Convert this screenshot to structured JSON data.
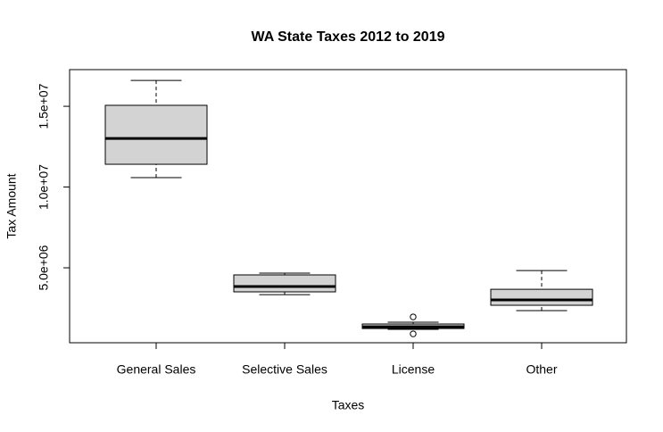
{
  "chart_data": {
    "type": "boxplot",
    "title": "WA State Taxes 2012 to 2019",
    "x_label": "Taxes",
    "y_label": "Tax Amount",
    "categories": [
      "General Sales",
      "Selective Sales",
      "License",
      "Other"
    ],
    "boxes": [
      {
        "min": 10580000,
        "q1": 11410000,
        "median": 13010000,
        "q3": 15060000,
        "max": 16600000,
        "outliers": []
      },
      {
        "min": 3340000,
        "q1": 3510000,
        "median": 3840000,
        "q3": 4560000,
        "max": 4670000,
        "outliers": []
      },
      {
        "min": 1190000,
        "q1": 1240000,
        "median": 1350000,
        "q3": 1520000,
        "max": 1630000,
        "outliers": [
          1960000,
          910000
        ]
      },
      {
        "min": 2350000,
        "q1": 2680000,
        "median": 3010000,
        "q3": 3670000,
        "max": 4830000,
        "outliers": []
      }
    ],
    "color": "#d3d3d3",
    "ylim": [
      360000,
      17270000
    ],
    "yticks": [
      {
        "value": 5000000,
        "label": "5.0e+06"
      },
      {
        "value": 10000000,
        "label": "1.0e+07"
      },
      {
        "value": 15000000,
        "label": "1.5e+07"
      }
    ]
  }
}
